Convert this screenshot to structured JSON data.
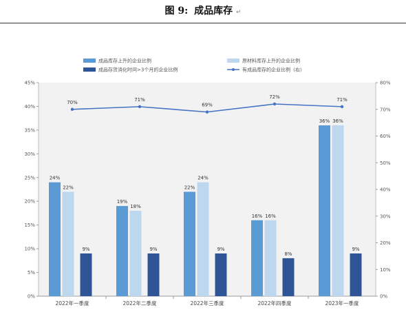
{
  "figure": {
    "number": "图 9:",
    "title": "成品库存",
    "trailing_mark": "↵"
  },
  "chart_data": {
    "type": "bar",
    "categories": [
      "2022年一季度",
      "2022年二季度",
      "2022年三季度",
      "2022年四季度",
      "2023年一季度"
    ],
    "series": [
      {
        "name": "成品库存上升的企业比例",
        "kind": "bar",
        "axis": "left",
        "color": "#5b9bd5",
        "values": [
          24,
          19,
          22,
          16,
          36
        ],
        "labels": [
          "24%",
          "19%",
          "22%",
          "16%",
          "36%"
        ]
      },
      {
        "name": "原材料库存上升的企业比例",
        "kind": "bar",
        "axis": "left",
        "color": "#bdd7ee",
        "values": [
          22,
          18,
          24,
          16,
          36
        ],
        "labels": [
          "22%",
          "18%",
          "24%",
          "16%",
          "36%"
        ]
      },
      {
        "name": "成品存货消化时间>3个月的企业比例",
        "kind": "bar",
        "axis": "left",
        "color": "#2f5597",
        "values": [
          9,
          9,
          9,
          8,
          9
        ],
        "labels": [
          "9%",
          "9%",
          "9%",
          "8%",
          "9%"
        ]
      },
      {
        "name": "有成品库存的企业比例（右）",
        "kind": "line",
        "axis": "right",
        "color": "#4472c4",
        "values": [
          70,
          71,
          69,
          72,
          71
        ],
        "labels": [
          "70%",
          "71%",
          "69%",
          "72%",
          "71%"
        ]
      }
    ],
    "left_axis": {
      "ylim": [
        0,
        45
      ],
      "ticks": [
        "0%",
        "5%",
        "10%",
        "15%",
        "20%",
        "25%",
        "30%",
        "35%",
        "40%",
        "45%"
      ]
    },
    "right_axis": {
      "ylim": [
        0,
        80
      ],
      "ticks": [
        "0%",
        "10%",
        "20%",
        "30%",
        "40%",
        "50%",
        "60%",
        "70%",
        "80%"
      ]
    },
    "grid": false,
    "plot_background": "#f2f2f2",
    "legend_position": "top"
  }
}
